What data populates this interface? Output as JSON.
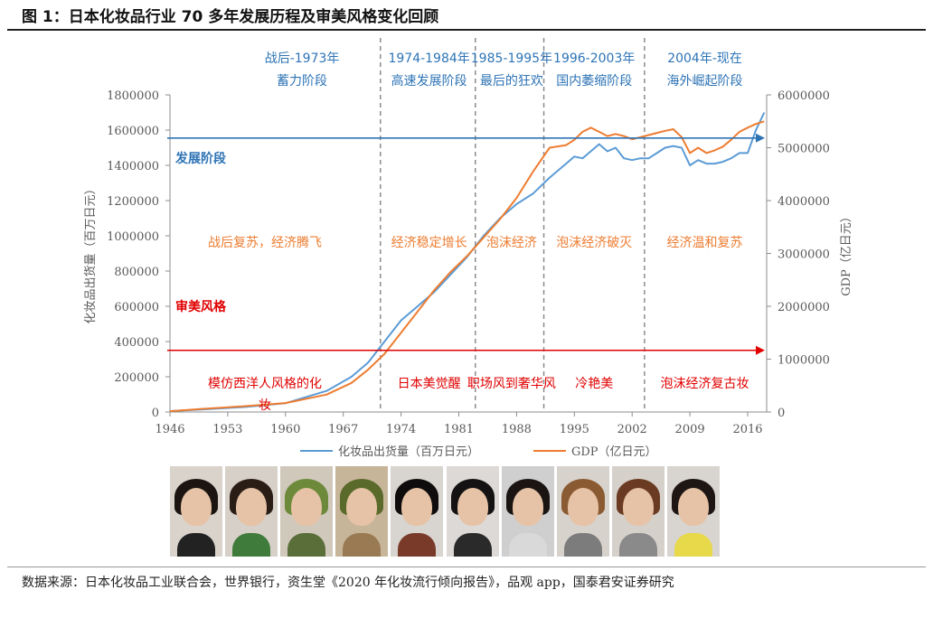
{
  "figure": {
    "title": "图 1：日本化妆品行业 70 多年发展历程及审美风格变化回顾",
    "source": "数据来源：日本化妆品工业联合会，世界银行，资生堂《2020 年化妆流行倾向报告》，品观 app，国泰君安证券研究"
  },
  "chart_data": {
    "type": "line",
    "ylabel_left": "化妆品出货量（百万日元）",
    "ylabel_right": "GDP（亿日元）",
    "x_ticks": [
      1946,
      1953,
      1960,
      1967,
      1974,
      1981,
      1988,
      1995,
      2002,
      2009,
      2016
    ],
    "xlim": [
      1946,
      2018.3
    ],
    "ylim_left": [
      0,
      1800000
    ],
    "ylim_right": [
      0,
      6000000
    ],
    "y_ticks_left": [
      0,
      200000,
      400000,
      600000,
      800000,
      1000000,
      1200000,
      1400000,
      1600000,
      1800000
    ],
    "y_ticks_right": [
      0,
      1000000,
      2000000,
      3000000,
      4000000,
      5000000,
      6000000
    ],
    "series": [
      {
        "name": "化妆品出货量（百万日元）",
        "axis": "left",
        "color": "#5b9bd5",
        "x": [
          1946,
          1950,
          1955,
          1960,
          1965,
          1968,
          1970,
          1972,
          1974,
          1976,
          1978,
          1980,
          1982,
          1984,
          1986,
          1988,
          1990,
          1992,
          1994,
          1995,
          1996,
          1997,
          1998,
          1999,
          2000,
          2001,
          2002,
          2003,
          2004,
          2005,
          2006,
          2007,
          2008,
          2009,
          2010,
          2011,
          2012,
          2013,
          2014,
          2015,
          2016,
          2017,
          2018
        ],
        "values": [
          5000,
          15000,
          28000,
          50000,
          120000,
          200000,
          280000,
          400000,
          520000,
          600000,
          680000,
          780000,
          880000,
          1000000,
          1100000,
          1180000,
          1240000,
          1330000,
          1410000,
          1450000,
          1440000,
          1480000,
          1520000,
          1480000,
          1500000,
          1440000,
          1430000,
          1440000,
          1440000,
          1470000,
          1500000,
          1510000,
          1500000,
          1400000,
          1430000,
          1410000,
          1410000,
          1420000,
          1440000,
          1470000,
          1470000,
          1600000,
          1700000
        ]
      },
      {
        "name": "GDP（亿日元）",
        "axis": "right",
        "color": "#ed7d31",
        "x": [
          1946,
          1950,
          1955,
          1960,
          1965,
          1968,
          1970,
          1972,
          1974,
          1976,
          1978,
          1980,
          1982,
          1984,
          1986,
          1988,
          1990,
          1992,
          1994,
          1995,
          1996,
          1997,
          1998,
          1999,
          2000,
          2001,
          2002,
          2003,
          2004,
          2005,
          2006,
          2007,
          2008,
          2009,
          2010,
          2011,
          2012,
          2013,
          2014,
          2015,
          2016,
          2017,
          2018
        ],
        "values": [
          15000,
          60000,
          110000,
          170000,
          330000,
          550000,
          800000,
          1100000,
          1500000,
          1900000,
          2300000,
          2650000,
          2950000,
          3300000,
          3650000,
          4050000,
          4550000,
          5000000,
          5050000,
          5150000,
          5300000,
          5380000,
          5300000,
          5220000,
          5260000,
          5220000,
          5160000,
          5200000,
          5240000,
          5280000,
          5320000,
          5350000,
          5200000,
          4900000,
          5000000,
          4900000,
          4950000,
          5020000,
          5150000,
          5300000,
          5380000,
          5450000,
          5500000
        ]
      }
    ],
    "period_dividers": [
      1971.5,
      1983,
      1991.3,
      2003.5
    ],
    "periods": [
      {
        "line1": "战后-1973年",
        "line2": "蓄力阶段",
        "x": 1962
      },
      {
        "line1": "1974-1984年",
        "line2": "高速发展阶段",
        "x": 1977.4
      },
      {
        "line1": "1985-1995年",
        "line2": "最后的狂欢",
        "x": 1987.4
      },
      {
        "line1": "1996-2003年",
        "line2": "国内萎缩阶段",
        "x": 1997.4
      },
      {
        "line1": "2004年-现在",
        "line2": "海外崛起阶段",
        "x": 2010.8
      }
    ],
    "development_arrow": {
      "label": "发展阶段",
      "y_left": 1555000,
      "color": "#2e74b5"
    },
    "aesthetic_arrow": {
      "label": "审美风格",
      "y_left": 350000,
      "color": "#e00000"
    },
    "development_stages": [
      {
        "text": "战后复苏，经济腾飞",
        "x": 1957.5
      },
      {
        "text": "经济稳定增长",
        "x": 1977.4
      },
      {
        "text": "泡沫经济",
        "x": 1987.4
      },
      {
        "text": "泡沫经济破灭",
        "x": 1997.4
      },
      {
        "text": "经济温和复苏",
        "x": 2010.8
      }
    ],
    "aesthetic_styles": [
      {
        "lines": [
          "模仿西洋人风格的化",
          "妆"
        ],
        "x": 1957.5
      },
      {
        "lines": [
          "日本美觉醒"
        ],
        "x": 1977.4
      },
      {
        "lines": [
          "职场风到奢华风"
        ],
        "x": 1987.4
      },
      {
        "lines": [
          "冷艳美"
        ],
        "x": 1997.4
      },
      {
        "lines": [
          "泡沫经济复古妆"
        ],
        "x": 2010.8
      }
    ]
  },
  "photos": [
    {
      "hair": "#1b1410",
      "body": "#222222",
      "bg": "#d9d3cc"
    },
    {
      "hair": "#2a1d16",
      "body": "#3f7b3a",
      "bg": "#d6d0c8"
    },
    {
      "hair": "#6d8a3b",
      "body": "#5a6e3a",
      "bg": "#cfc8bb"
    },
    {
      "hair": "#5a6a2a",
      "body": "#9a7a52",
      "bg": "#c7b59a"
    },
    {
      "hair": "#0e0c0c",
      "body": "#7a3a2a",
      "bg": "#d8d4cf"
    },
    {
      "hair": "#141212",
      "body": "#2a2a2a",
      "bg": "#dcd9d6"
    },
    {
      "hair": "#1a1412",
      "body": "#d9d9d9",
      "bg": "#cfcfcf"
    },
    {
      "hair": "#8a5a32",
      "body": "#7c7c7c",
      "bg": "#d7d2cb"
    },
    {
      "hair": "#6a3a22",
      "body": "#8a8a8a",
      "bg": "#d5d0c9"
    },
    {
      "hair": "#1e1614",
      "body": "#e8d94a",
      "bg": "#d8d4cf"
    }
  ]
}
